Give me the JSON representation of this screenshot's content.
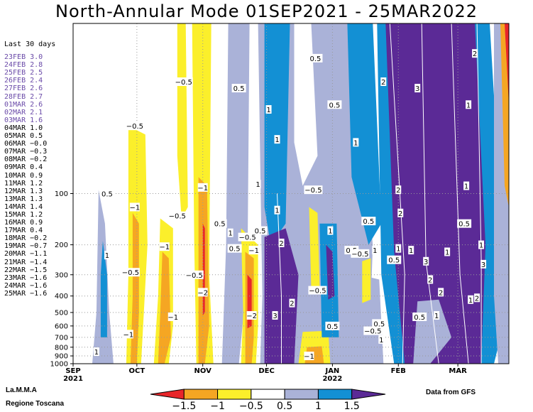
{
  "title": "North-Annular Mode 01SEP2021 - 25MAR2022",
  "side_panel": {
    "heading": "Last 30 days",
    "rows": [
      {
        "date": "23FEB",
        "value": "3.0",
        "forecast": true
      },
      {
        "date": "24FEB",
        "value": "2.8",
        "forecast": true
      },
      {
        "date": "25FEB",
        "value": "2.5",
        "forecast": true
      },
      {
        "date": "26FEB",
        "value": "2.4",
        "forecast": true
      },
      {
        "date": "27FEB",
        "value": "2.6",
        "forecast": true
      },
      {
        "date": "28FEB",
        "value": "2.7",
        "forecast": true
      },
      {
        "date": "01MAR",
        "value": "2.6",
        "forecast": true
      },
      {
        "date": "02MAR",
        "value": "2.1",
        "forecast": true
      },
      {
        "date": "03MAR",
        "value": "1.6",
        "forecast": true
      },
      {
        "date": "04MAR",
        "value": "1.0",
        "forecast": false
      },
      {
        "date": "05MAR",
        "value": "0.5",
        "forecast": false
      },
      {
        "date": "06MAR",
        "value": "−0.0",
        "forecast": false
      },
      {
        "date": "07MAR",
        "value": "−0.3",
        "forecast": false
      },
      {
        "date": "08MAR",
        "value": "−0.2",
        "forecast": false
      },
      {
        "date": "09MAR",
        "value": "0.4",
        "forecast": false
      },
      {
        "date": "10MAR",
        "value": "0.9",
        "forecast": false
      },
      {
        "date": "11MAR",
        "value": "1.2",
        "forecast": false
      },
      {
        "date": "12MAR",
        "value": "1.3",
        "forecast": false
      },
      {
        "date": "13MAR",
        "value": "1.3",
        "forecast": false
      },
      {
        "date": "14MAR",
        "value": "1.4",
        "forecast": false
      },
      {
        "date": "15MAR",
        "value": "1.2",
        "forecast": false
      },
      {
        "date": "16MAR",
        "value": "0.9",
        "forecast": false
      },
      {
        "date": "17MAR",
        "value": "0.4",
        "forecast": false
      },
      {
        "date": "18MAR",
        "value": "−0.2",
        "forecast": false
      },
      {
        "date": "19MAR",
        "value": "−0.7",
        "forecast": false
      },
      {
        "date": "20MAR",
        "value": "−1.1",
        "forecast": false
      },
      {
        "date": "21MAR",
        "value": "−1.4",
        "forecast": false
      },
      {
        "date": "22MAR",
        "value": "−1.5",
        "forecast": false
      },
      {
        "date": "23MAR",
        "value": "−1.6",
        "forecast": false
      },
      {
        "date": "24MAR",
        "value": "−1.6",
        "forecast": false
      },
      {
        "date": "25MAR",
        "value": "−1.6",
        "forecast": false
      }
    ]
  },
  "chart_data": {
    "type": "heatmap",
    "title": "North-Annular Mode 01SEP2021 - 25MAR2022",
    "x_range": [
      "2021-09-01",
      "2022-03-25"
    ],
    "x_tick_labels": [
      {
        "date": "2021-09-01",
        "label": "SEP",
        "sublabel": "2021"
      },
      {
        "date": "2021-10-01",
        "label": "OCT",
        "sublabel": ""
      },
      {
        "date": "2021-11-01",
        "label": "NOV",
        "sublabel": ""
      },
      {
        "date": "2021-12-01",
        "label": "DEC",
        "sublabel": ""
      },
      {
        "date": "2022-01-01",
        "label": "JAN",
        "sublabel": "2022"
      },
      {
        "date": "2022-02-01",
        "label": "FEB",
        "sublabel": ""
      },
      {
        "date": "2022-03-01",
        "label": "MAR",
        "sublabel": ""
      }
    ],
    "y_scale": "log-pressure",
    "y_range_hPa": [
      1000,
      10
    ],
    "y_tick_labels": [
      "100",
      "200",
      "300",
      "400",
      "500",
      "600",
      "700",
      "800",
      "900",
      "1000"
    ],
    "grid": true,
    "colorbar": {
      "ticks": [
        "−1.5",
        "−1",
        "−0.5",
        "0.5",
        "1",
        "1.5"
      ],
      "colors": [
        "#e8262a",
        "#f5a623",
        "#fbef2b",
        "#ffffff",
        "#aab2d8",
        "#1390d4",
        "#5b2a96"
      ]
    },
    "contour_labels": [
      {
        "date": "2021-09-17",
        "p": 100,
        "text": "0.5"
      },
      {
        "date": "2021-09-17",
        "p": 230,
        "text": "1"
      },
      {
        "date": "2021-09-12",
        "p": 850,
        "text": "1"
      },
      {
        "date": "2021-09-30",
        "p": 40,
        "text": "−0.5"
      },
      {
        "date": "2021-09-30",
        "p": 120,
        "text": "−1"
      },
      {
        "date": "2021-09-28",
        "p": 290,
        "text": "−0.5"
      },
      {
        "date": "2021-09-27",
        "p": 670,
        "text": "−1"
      },
      {
        "date": "2021-10-14",
        "p": 205,
        "text": "−1"
      },
      {
        "date": "2021-10-18",
        "p": 530,
        "text": "−1"
      },
      {
        "date": "2021-10-23",
        "p": 22,
        "text": "−0.5"
      },
      {
        "date": "2021-10-20",
        "p": 135,
        "text": "−0.5"
      },
      {
        "date": "2021-10-28",
        "p": 300,
        "text": "−0.5"
      },
      {
        "date": "2021-11-01",
        "p": 92,
        "text": "−1"
      },
      {
        "date": "2021-11-01",
        "p": 380,
        "text": "−2"
      },
      {
        "date": "2021-11-09",
        "p": 150,
        "text": "0.5"
      },
      {
        "date": "2021-11-14",
        "p": 170,
        "text": "1"
      },
      {
        "date": "2021-11-16",
        "p": 210,
        "text": "0.5"
      },
      {
        "date": "2021-11-18",
        "p": 24,
        "text": "0.5"
      },
      {
        "date": "2021-11-22",
        "p": 180,
        "text": "−0.5"
      },
      {
        "date": "2021-11-28",
        "p": 165,
        "text": "0.5"
      },
      {
        "date": "2021-11-25",
        "p": 215,
        "text": "−1"
      },
      {
        "date": "2021-11-24",
        "p": 520,
        "text": "−2"
      },
      {
        "date": "2021-12-02",
        "p": 32,
        "text": "1"
      },
      {
        "date": "2021-11-27",
        "p": 88,
        "text": "1"
      },
      {
        "date": "2021-12-06",
        "p": 125,
        "text": "1"
      },
      {
        "date": "2021-12-08",
        "p": 195,
        "text": "2"
      },
      {
        "date": "2021-12-06",
        "p": 48,
        "text": "1"
      },
      {
        "date": "2021-12-13",
        "p": 440,
        "text": "2"
      },
      {
        "date": "2021-12-05",
        "p": 520,
        "text": "3"
      },
      {
        "date": "2021-12-24",
        "p": 16,
        "text": "0.5"
      },
      {
        "date": "2021-12-23",
        "p": 95,
        "text": "−0.5"
      },
      {
        "date": "2021-12-25",
        "p": 370,
        "text": "−0.5"
      },
      {
        "date": "2021-12-21",
        "p": 900,
        "text": "−1"
      },
      {
        "date": "2022-01-01",
        "p": 600,
        "text": "0.5"
      },
      {
        "date": "2021-12-31",
        "p": 165,
        "text": "1"
      },
      {
        "date": "2022-01-02",
        "p": 30,
        "text": "0.5"
      },
      {
        "date": "2022-01-12",
        "p": 50,
        "text": "1"
      },
      {
        "date": "2022-01-10",
        "p": 215,
        "text": "0.5"
      },
      {
        "date": "2022-01-14",
        "p": 225,
        "text": "−0.5"
      },
      {
        "date": "2022-01-18",
        "p": 145,
        "text": "0.5"
      },
      {
        "date": "2022-01-21",
        "p": 215,
        "text": "1"
      },
      {
        "date": "2022-01-20",
        "p": 640,
        "text": "−0.5"
      },
      {
        "date": "2022-01-23",
        "p": 580,
        "text": "0.5"
      },
      {
        "date": "2022-01-24",
        "p": 720,
        "text": "1"
      },
      {
        "date": "2022-01-25",
        "p": 22,
        "text": "2"
      },
      {
        "date": "2022-01-30",
        "p": 245,
        "text": "0.5"
      },
      {
        "date": "2022-02-01",
        "p": 210,
        "text": "1"
      },
      {
        "date": "2022-02-01",
        "p": 95,
        "text": "2"
      },
      {
        "date": "2022-02-02",
        "p": 130,
        "text": "2"
      },
      {
        "date": "2022-02-07",
        "p": 215,
        "text": "1"
      },
      {
        "date": "2022-02-10",
        "p": 24,
        "text": "3"
      },
      {
        "date": "2022-02-11",
        "p": 530,
        "text": "0.5"
      },
      {
        "date": "2022-02-14",
        "p": 250,
        "text": "3"
      },
      {
        "date": "2022-02-16",
        "p": 320,
        "text": "2"
      },
      {
        "date": "2022-02-19",
        "p": 520,
        "text": "1"
      },
      {
        "date": "2022-02-21",
        "p": 380,
        "text": "2"
      },
      {
        "date": "2022-02-24",
        "p": 220,
        "text": "1"
      },
      {
        "date": "2022-03-04",
        "p": 150,
        "text": "0.5"
      },
      {
        "date": "2022-03-05",
        "p": 90,
        "text": "1"
      },
      {
        "date": "2022-03-06",
        "p": 30,
        "text": "1"
      },
      {
        "date": "2022-03-07",
        "p": 420,
        "text": "1"
      },
      {
        "date": "2022-03-09",
        "p": 15,
        "text": "2"
      },
      {
        "date": "2022-03-10",
        "p": 410,
        "text": "2"
      },
      {
        "date": "2022-03-12",
        "p": 200,
        "text": "1"
      },
      {
        "date": "2022-03-13",
        "p": 260,
        "text": "3"
      }
    ]
  },
  "footer": {
    "org_line1": "La.M.M.A",
    "org_line2": "Regione Toscana",
    "source": "Data from GFS"
  }
}
